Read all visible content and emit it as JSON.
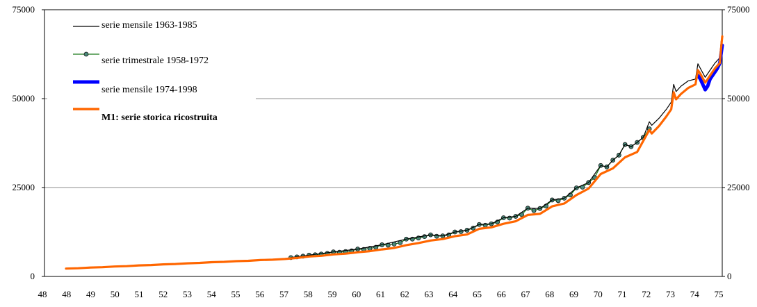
{
  "chart_data": {
    "type": "line",
    "title": "",
    "xlabel": "",
    "ylabel": "",
    "ylim": [
      0,
      75000
    ],
    "yticks": [
      "0",
      "25000",
      "50000",
      "75000"
    ],
    "yticks_right": [
      "0",
      "25000",
      "50000",
      "75000"
    ],
    "xticks": [
      "48",
      "48",
      "49",
      "50",
      "51",
      "52",
      "53",
      "54",
      "55",
      "56",
      "57",
      "58",
      "59",
      "60",
      "61",
      "62",
      "63",
      "64",
      "65",
      "66",
      "67",
      "68",
      "69",
      "70",
      "71",
      "72",
      "73",
      "74",
      "75"
    ],
    "grid": "horizontal",
    "legend_placement": "top-left",
    "legend": [
      {
        "key": "m1",
        "label": "serie mensile 1963-1985",
        "color": "#000000",
        "style": "line"
      },
      {
        "key": "q",
        "label": "serie trimestrale 1958-1972",
        "color": "#1a7a1a",
        "marker_fill": "#4a8a7a",
        "style": "line-marker"
      },
      {
        "key": "m2",
        "label": "serie mensile 1974-1998",
        "color": "#0000ff",
        "style": "thick-line"
      },
      {
        "key": "recon",
        "label": "M1: serie storica ricostruita",
        "color": "#ff6600",
        "style": "thick-line",
        "bold": true
      }
    ],
    "series": [
      {
        "key": "q",
        "name": "serie trimestrale 1958-1972",
        "x": [
          1957.25,
          1957.5,
          1957.75,
          1958,
          1958.25,
          1958.5,
          1958.75,
          1959,
          1959.25,
          1959.5,
          1959.75,
          1960,
          1960.25,
          1960.5,
          1960.75,
          1961,
          1961.25,
          1961.5,
          1961.75,
          1962,
          1962.25,
          1962.5,
          1962.75,
          1963,
          1963.25,
          1963.5,
          1963.75,
          1964,
          1964.25,
          1964.5,
          1964.75,
          1965,
          1965.25,
          1965.5,
          1965.75,
          1966,
          1966.25,
          1966.5,
          1966.75,
          1967,
          1967.25,
          1967.5,
          1967.75,
          1968,
          1968.25,
          1968.5,
          1968.75,
          1969,
          1969.25,
          1969.5,
          1969.75,
          1970,
          1970.25,
          1970.5,
          1970.75,
          1971,
          1971.25,
          1971.5,
          1971.75,
          1972
        ],
        "values": [
          5300,
          5500,
          5700,
          6000,
          6100,
          6300,
          6500,
          6900,
          6800,
          7000,
          7200,
          7700,
          7600,
          7900,
          8200,
          8900,
          8800,
          9100,
          9500,
          10500,
          10500,
          10800,
          11200,
          11700,
          11300,
          11400,
          11700,
          12500,
          12600,
          13000,
          13600,
          14600,
          14400,
          14800,
          15300,
          16500,
          16400,
          16900,
          17400,
          19200,
          18500,
          19100,
          19800,
          21500,
          21300,
          22000,
          22900,
          24900,
          25100,
          26400,
          27800,
          31200,
          30800,
          32700,
          34100,
          37100,
          36500,
          37700,
          39100,
          41500
        ]
      },
      {
        "key": "m1",
        "name": "serie mensile 1963-1985",
        "x": [
          1957.25,
          1958,
          1959,
          1960,
          1961,
          1962,
          1963,
          1963.5,
          1964,
          1964.5,
          1965,
          1965.5,
          1966,
          1966.5,
          1967,
          1967.5,
          1968,
          1968.5,
          1969,
          1969.5,
          1970,
          1970.25,
          1970.5,
          1970.75,
          1971,
          1971.25,
          1971.5,
          1971.75,
          1972,
          1972.1,
          1972.4,
          1972.7,
          1972.9,
          1973,
          1973.1,
          1973.3,
          1973.6,
          1973.9,
          1974,
          1974.1,
          1974.3,
          1974.5,
          1974.7,
          1974.9,
          1974.95,
          1975
        ],
        "values": [
          5300,
          6000,
          6900,
          7700,
          8900,
          10500,
          11700,
          11400,
          12500,
          13000,
          14600,
          14800,
          16500,
          16900,
          19200,
          19100,
          21500,
          22000,
          24900,
          26400,
          31200,
          30800,
          32700,
          34100,
          37100,
          36500,
          37700,
          39100,
          43500,
          42500,
          44500,
          47000,
          49000,
          54000,
          52000,
          53500,
          55000,
          55500,
          59800,
          58500,
          56000,
          58000,
          60000,
          61500,
          66000,
          67000
        ]
      },
      {
        "key": "m2",
        "name": "serie mensile 1974-1998",
        "x": [
          1974,
          1974.1,
          1974.2,
          1974.3,
          1974.4,
          1974.5,
          1974.6,
          1974.7,
          1974.8,
          1974.9,
          1975
        ],
        "values": [
          56500,
          55500,
          54000,
          52500,
          53500,
          55500,
          56500,
          57500,
          58500,
          60000,
          65000
        ]
      },
      {
        "key": "recon",
        "name": "M1: serie storica ricostruita",
        "x": [
          1948,
          1948.5,
          1949,
          1949.5,
          1950,
          1950.5,
          1951,
          1951.5,
          1952,
          1952.5,
          1953,
          1953.5,
          1954,
          1954.5,
          1955,
          1955.5,
          1956,
          1956.5,
          1957,
          1957.5,
          1958,
          1958.5,
          1959,
          1959.5,
          1960,
          1960.5,
          1961,
          1961.5,
          1962,
          1962.5,
          1963,
          1963.5,
          1964,
          1964.5,
          1965,
          1965.5,
          1966,
          1966.5,
          1967,
          1967.5,
          1968,
          1968.5,
          1969,
          1969.5,
          1970,
          1970.5,
          1971,
          1971.5,
          1972,
          1972.1,
          1972.4,
          1972.7,
          1972.9,
          1973,
          1973.1,
          1973.3,
          1973.6,
          1973.9,
          1974,
          1974.1,
          1974.3,
          1974.5,
          1974.7,
          1974.9,
          1974.95,
          1975
        ],
        "values": [
          2200,
          2300,
          2500,
          2600,
          2800,
          2900,
          3100,
          3200,
          3400,
          3500,
          3700,
          3800,
          4000,
          4100,
          4300,
          4400,
          4600,
          4700,
          4900,
          5200,
          5600,
          5800,
          6200,
          6400,
          6800,
          7100,
          7600,
          8000,
          8800,
          9400,
          10100,
          10500,
          11300,
          11800,
          13400,
          13800,
          14800,
          15500,
          17300,
          17600,
          19700,
          20500,
          22900,
          24700,
          28800,
          30400,
          33500,
          35000,
          41200,
          40200,
          42300,
          45000,
          47000,
          51800,
          49800,
          51300,
          53000,
          54000,
          58000,
          57000,
          54500,
          56500,
          58500,
          60000,
          64000,
          67500
        ]
      }
    ]
  }
}
